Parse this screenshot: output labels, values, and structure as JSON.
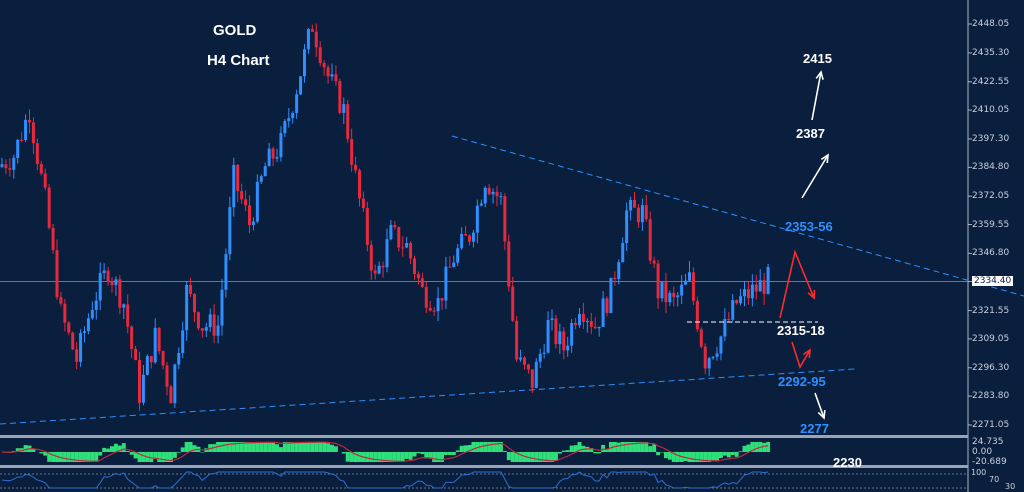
{
  "chart_data": {
    "type": "candlestick",
    "title": "GOLD",
    "subtitle": "H4 Chart",
    "ylim": [
      2271.05,
      2448.05
    ],
    "y_ticks": [
      "2448.05",
      "2435.30",
      "2422.55",
      "2410.05",
      "2397.30",
      "2384.80",
      "2372.05",
      "2359.55",
      "2346.80",
      "2334.40",
      "2321.55",
      "2309.05",
      "2296.30",
      "2283.80",
      "2271.05"
    ],
    "current_price": "2334.40",
    "price_path": [
      2385,
      2390,
      2410,
      2370,
      2320,
      2300,
      2325,
      2340,
      2325,
      2285,
      2310,
      2285,
      2330,
      2315,
      2315,
      2380,
      2360,
      2385,
      2395,
      2420,
      2448,
      2425,
      2410,
      2370,
      2335,
      2355,
      2350,
      2330,
      2325,
      2345,
      2355,
      2380,
      2370,
      2300,
      2290,
      2315,
      2305,
      2325,
      2315,
      2330,
      2365,
      2365,
      2330,
      2325,
      2335,
      2300,
      2310,
      2325,
      2330,
      2335
    ],
    "levels": {
      "l2415": "2415",
      "l2387": "2387",
      "l2353": "2353-56",
      "l2315": "2315-18",
      "l2292": "2292-95",
      "l2277": "2277",
      "l2230": "2230"
    },
    "macd_axis": [
      "24.735",
      "0.00",
      "-20.689"
    ],
    "rsi_axis": [
      "100",
      "70",
      "30"
    ],
    "colors": {
      "bg": "#0a1f3d",
      "up": "#2f8fff",
      "down": "#e8283c",
      "trend": "#2f8fff",
      "macd_hist": "#2ee07a",
      "macd_signal": "#c0283c"
    }
  }
}
